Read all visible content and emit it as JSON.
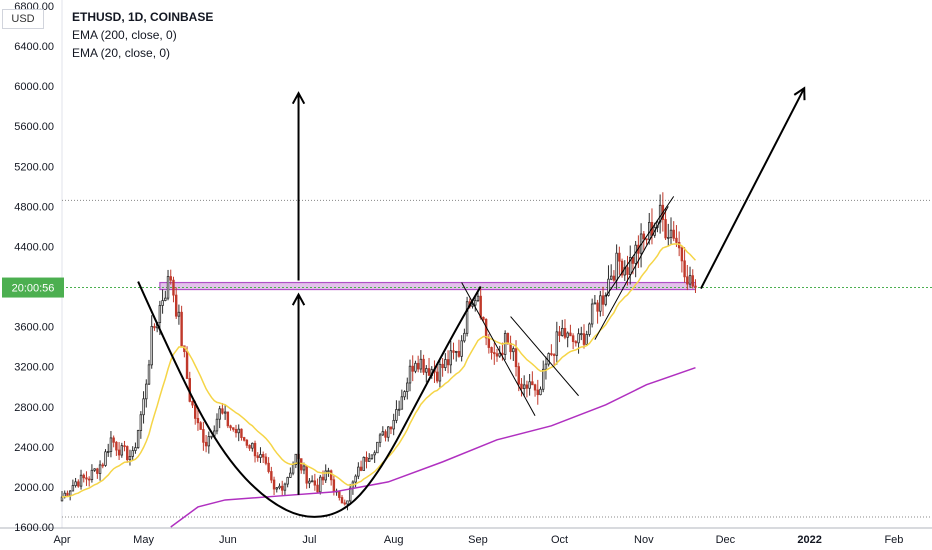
{
  "legend": {
    "symbol_line": "ETHUSD, 1D, COINBASE",
    "ema_long": "EMA (200, close, 0)",
    "ema_short": "EMA (20, close, 0)"
  },
  "currency_button": "USD",
  "price_label": "20:00:56",
  "colors": {
    "up_candle": "#2b2b2b",
    "down_candle": "#c0392b",
    "ema20": "#f5d547",
    "ema200": "#b030c0",
    "resistance_zone": "#b04fc6",
    "price_line": "#4caf50",
    "price_label_bg": "#4caf50",
    "drawing": "#000000"
  },
  "chart_data": {
    "type": "candlestick",
    "title": "ETHUSD, 1D, COINBASE",
    "y_axis": {
      "ylim": [
        1590,
        6860
      ],
      "ticks": [
        "1600.00",
        "2000.00",
        "2400.00",
        "2800.00",
        "3200.00",
        "3600.00",
        "4400.00",
        "4800.00",
        "5200.00",
        "5600.00",
        "6000.00",
        "6400.00",
        "6800.00"
      ],
      "tick_values": [
        1600,
        2000,
        2400,
        2800,
        3200,
        3600,
        4400,
        4800,
        5200,
        5600,
        6000,
        6400,
        6800
      ]
    },
    "x_axis": {
      "xlim": [
        0,
        320
      ],
      "labels": [
        "Apr",
        "May",
        "Jun",
        "Jul",
        "Aug",
        "Sep",
        "Oct",
        "Nov",
        "Dec",
        "2022",
        "Feb"
      ],
      "label_days": [
        0,
        30,
        61,
        91,
        122,
        153,
        183,
        214,
        244,
        275,
        306
      ]
    },
    "price_anchors": [
      [
        0,
        1900
      ],
      [
        5,
        2050
      ],
      [
        10,
        2100
      ],
      [
        15,
        2250
      ],
      [
        18,
        2480
      ],
      [
        22,
        2350
      ],
      [
        26,
        2300
      ],
      [
        30,
        2850
      ],
      [
        33,
        3500
      ],
      [
        37,
        3900
      ],
      [
        40,
        4100
      ],
      [
        43,
        3650
      ],
      [
        47,
        2900
      ],
      [
        50,
        2600
      ],
      [
        53,
        2450
      ],
      [
        58,
        2750
      ],
      [
        62,
        2600
      ],
      [
        66,
        2500
      ],
      [
        70,
        2400
      ],
      [
        74,
        2250
      ],
      [
        78,
        1950
      ],
      [
        82,
        2050
      ],
      [
        86,
        2300
      ],
      [
        90,
        2100
      ],
      [
        94,
        2000
      ],
      [
        98,
        2150
      ],
      [
        102,
        1850
      ],
      [
        105,
        1900
      ],
      [
        109,
        2150
      ],
      [
        113,
        2350
      ],
      [
        118,
        2500
      ],
      [
        122,
        2700
      ],
      [
        126,
        3000
      ],
      [
        130,
        3300
      ],
      [
        134,
        3200
      ],
      [
        138,
        3150
      ],
      [
        142,
        3250
      ],
      [
        146,
        3350
      ],
      [
        150,
        3900
      ],
      [
        153,
        3950
      ],
      [
        156,
        3500
      ],
      [
        159,
        3250
      ],
      [
        163,
        3450
      ],
      [
        166,
        3300
      ],
      [
        169,
        2900
      ],
      [
        172,
        3050
      ],
      [
        175,
        2850
      ],
      [
        178,
        3200
      ],
      [
        181,
        3400
      ],
      [
        184,
        3550
      ],
      [
        187,
        3450
      ],
      [
        190,
        3450
      ],
      [
        193,
        3550
      ],
      [
        196,
        3800
      ],
      [
        199,
        3900
      ],
      [
        202,
        4150
      ],
      [
        205,
        4250
      ],
      [
        208,
        4200
      ],
      [
        211,
        4350
      ],
      [
        214,
        4450
      ],
      [
        217,
        4600
      ],
      [
        220,
        4700
      ],
      [
        222,
        4600
      ],
      [
        225,
        4550
      ],
      [
        228,
        4300
      ],
      [
        231,
        4050
      ],
      [
        233,
        3980
      ]
    ],
    "ema200_anchors": [
      [
        40,
        1600
      ],
      [
        50,
        1800
      ],
      [
        60,
        1870
      ],
      [
        80,
        1910
      ],
      [
        100,
        1950
      ],
      [
        120,
        2050
      ],
      [
        140,
        2250
      ],
      [
        160,
        2470
      ],
      [
        180,
        2610
      ],
      [
        200,
        2820
      ],
      [
        215,
        3020
      ],
      [
        233,
        3190
      ]
    ],
    "current_price": 3990,
    "resistance_zone": [
      3970,
      4040
    ],
    "horizontal_dotted_levels": [
      4860,
      1700
    ],
    "drawings": {
      "cup_arc": [
        [
          28,
          4050
        ],
        [
          45,
          3020
        ],
        [
          60,
          2300
        ],
        [
          75,
          1870
        ],
        [
          90,
          1670
        ],
        [
          105,
          1760
        ],
        [
          118,
          2200
        ],
        [
          132,
          2920
        ],
        [
          145,
          3580
        ],
        [
          154,
          4000
        ]
      ],
      "arrow_up_top": [
        [
          87,
          4060
        ],
        [
          87,
          5930
        ]
      ],
      "arrow_up_bottom": [
        [
          87,
          1920
        ],
        [
          87,
          3920
        ]
      ],
      "channel_down": [
        [
          [
            147,
            4040
          ],
          [
            174,
            2710
          ]
        ],
        [
          [
            165,
            3700
          ],
          [
            190,
            2910
          ]
        ]
      ],
      "channel_up": [
        [
          [
            196,
            3470
          ],
          [
            223,
            4800
          ]
        ],
        [
          [
            200,
            3900
          ],
          [
            225,
            4900
          ]
        ]
      ],
      "target_arrow": [
        [
          235,
          3980
        ],
        [
          273,
          5980
        ]
      ]
    }
  }
}
